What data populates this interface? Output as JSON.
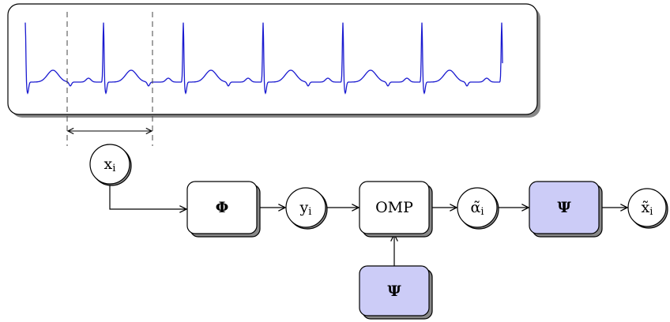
{
  "nodes": [
    {
      "label": "x",
      "sub": "i"
    },
    {
      "label": "Φ"
    },
    {
      "label": "y",
      "sub": "i"
    },
    {
      "label": "OMP"
    },
    {
      "label": "α̃",
      "sub": "i"
    },
    {
      "label": "Ψ"
    },
    {
      "label": "x̃",
      "sub": "i"
    },
    {
      "label": "Ψ"
    }
  ]
}
